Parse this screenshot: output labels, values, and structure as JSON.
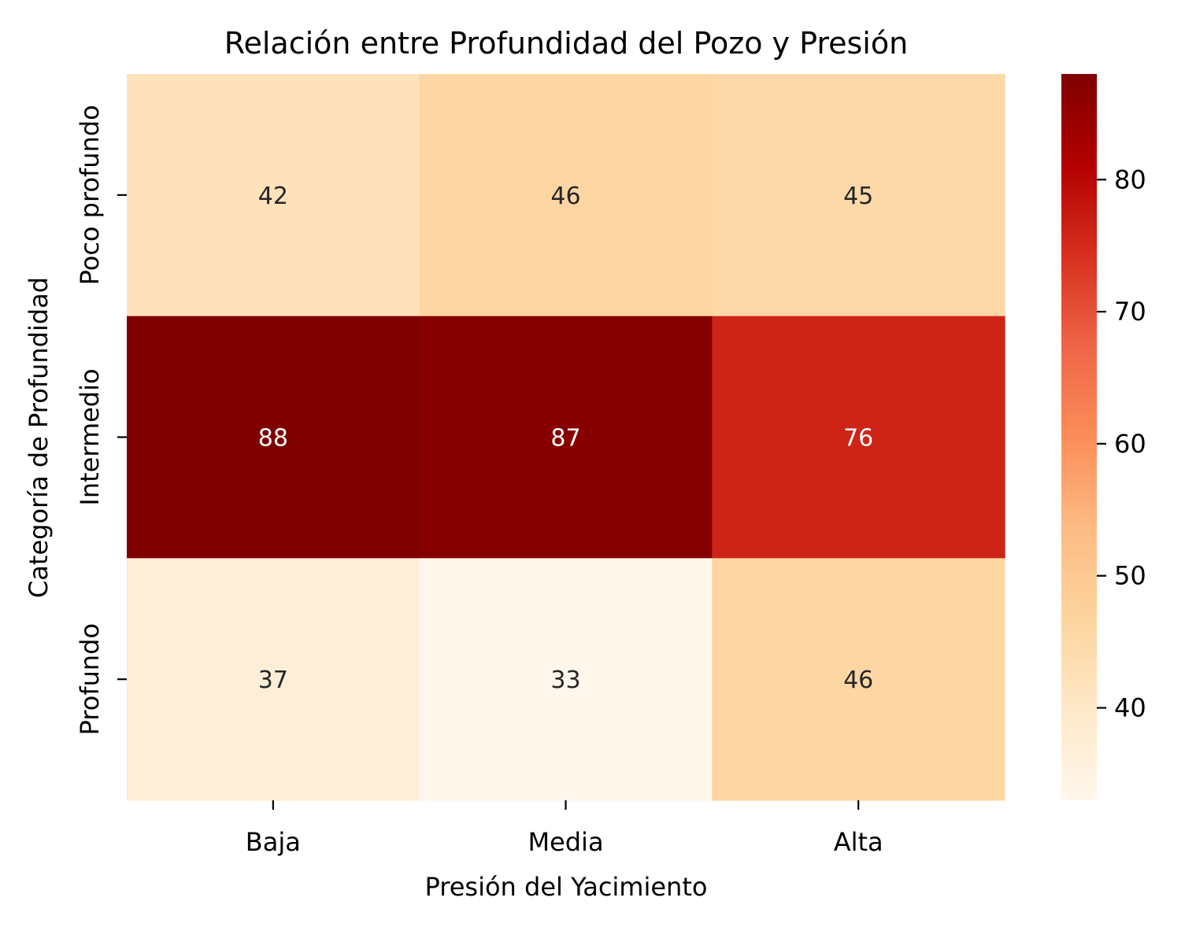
{
  "chart_data": {
    "type": "heatmap",
    "title": "Relación entre Profundidad del Pozo y Presión",
    "xlabel": "Presión del Yacimiento",
    "ylabel": "Categoría de Profundidad",
    "x_categories": [
      "Baja",
      "Media",
      "Alta"
    ],
    "y_categories": [
      "Poco profundo",
      "Intermedio",
      "Profundo"
    ],
    "values": [
      [
        42,
        46,
        45
      ],
      [
        88,
        87,
        76
      ],
      [
        37,
        33,
        46
      ]
    ],
    "colormap": "OrRd",
    "color_range": [
      33,
      88
    ],
    "colorbar_ticks": [
      40,
      50,
      60,
      70,
      80
    ]
  }
}
